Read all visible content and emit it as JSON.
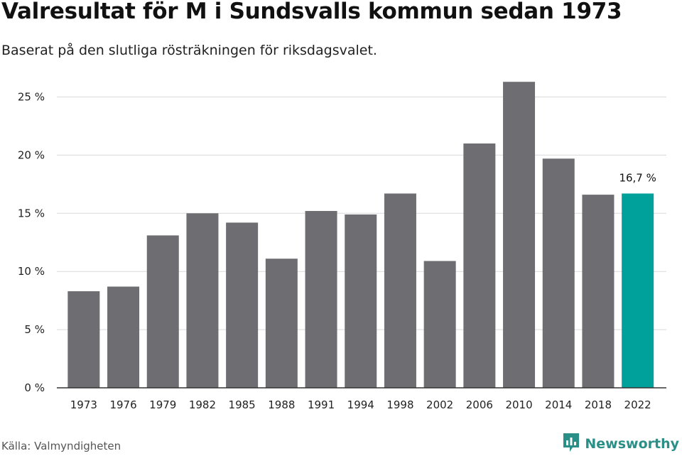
{
  "header": {
    "title": "Valresultat för M i Sundsvalls kommun sedan 1973",
    "subtitle": "Baserat på den slutliga rösträkningen för riksdagsvalet."
  },
  "footer": {
    "source": "Källa: Valmyndigheten",
    "brand": "Newsworthy",
    "brand_icon": "newsworthy-logo-icon"
  },
  "colors": {
    "bar": "#6e6d72",
    "highlight": "#00a19a",
    "grid": "#d9d9d9",
    "axis": "#333333",
    "brand": "#2a8f87"
  },
  "chart_data": {
    "type": "bar",
    "categories": [
      "1973",
      "1976",
      "1979",
      "1982",
      "1985",
      "1988",
      "1991",
      "1994",
      "1998",
      "2002",
      "2006",
      "2010",
      "2014",
      "2018",
      "2022"
    ],
    "values": [
      8.3,
      8.7,
      13.1,
      15.0,
      14.2,
      11.1,
      15.2,
      14.9,
      16.7,
      10.9,
      21.0,
      26.3,
      19.7,
      16.6,
      16.7
    ],
    "highlight_category": "2022",
    "data_labels": [
      {
        "category": "2022",
        "text": "16,7 %"
      }
    ],
    "yticks": [
      {
        "value": 0,
        "label": "0 %"
      },
      {
        "value": 5,
        "label": "5 %"
      },
      {
        "value": 10,
        "label": "10 %"
      },
      {
        "value": 15,
        "label": "15 %"
      },
      {
        "value": 20,
        "label": "20 %"
      },
      {
        "value": 25,
        "label": "25 %"
      }
    ],
    "ylim": [
      0,
      27
    ],
    "grid": true,
    "title": "Valresultat för M i Sundsvalls kommun sedan 1973",
    "xlabel": "",
    "ylabel": ""
  }
}
